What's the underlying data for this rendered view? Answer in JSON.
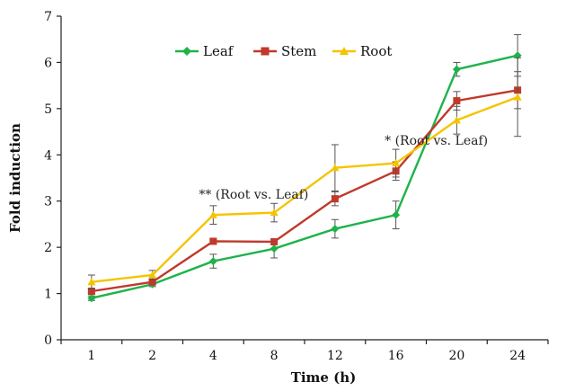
{
  "chart_data": {
    "type": "line",
    "title": "",
    "xlabel": "Time (h)",
    "ylabel": "Fold induction",
    "categories": [
      "1",
      "2",
      "4",
      "8",
      "12",
      "16",
      "20",
      "24"
    ],
    "ylim": [
      0,
      7
    ],
    "yticks": [
      "0",
      "1",
      "2",
      "3",
      "4",
      "5",
      "6",
      "7"
    ],
    "grid": false,
    "legend_position": "top-center",
    "series": [
      {
        "name": "Leaf",
        "color": "#1db34a",
        "marker": "diamond",
        "values": [
          0.9,
          1.2,
          1.7,
          1.97,
          2.4,
          2.7,
          5.85,
          6.15
        ],
        "errors": [
          0.05,
          0.05,
          0.15,
          0.2,
          0.2,
          0.3,
          0.15,
          0.45
        ]
      },
      {
        "name": "Stem",
        "color": "#c0392b",
        "marker": "square",
        "values": [
          1.05,
          1.25,
          2.13,
          2.12,
          3.05,
          3.65,
          5.17,
          5.4
        ],
        "errors": [
          0.05,
          0.05,
          0.05,
          0.05,
          0.15,
          0.2,
          0.2,
          0.4
        ]
      },
      {
        "name": "Root",
        "color": "#f5c400",
        "marker": "triangle",
        "values": [
          1.25,
          1.4,
          2.7,
          2.75,
          3.72,
          3.82,
          4.75,
          5.25
        ],
        "errors": [
          0.15,
          0.1,
          0.2,
          0.2,
          0.5,
          0.3,
          0.3,
          0.85
        ]
      }
    ],
    "annotations": [
      {
        "text": "** (Root vs. Leaf)",
        "x": "4",
        "y": 3.05
      },
      {
        "text": "* (Root vs. Leaf)",
        "x": "16",
        "y": 4.22
      }
    ]
  }
}
